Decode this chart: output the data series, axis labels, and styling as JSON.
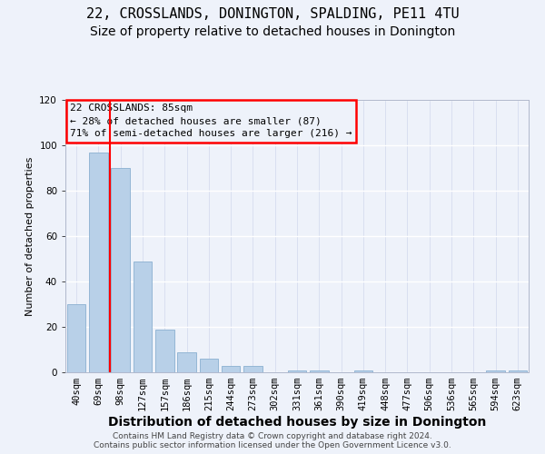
{
  "title1": "22, CROSSLANDS, DONINGTON, SPALDING, PE11 4TU",
  "title2": "Size of property relative to detached houses in Donington",
  "xlabel": "Distribution of detached houses by size in Donington",
  "ylabel": "Number of detached properties",
  "categories": [
    "40sqm",
    "69sqm",
    "98sqm",
    "127sqm",
    "157sqm",
    "186sqm",
    "215sqm",
    "244sqm",
    "273sqm",
    "302sqm",
    "331sqm",
    "361sqm",
    "390sqm",
    "419sqm",
    "448sqm",
    "477sqm",
    "506sqm",
    "536sqm",
    "565sqm",
    "594sqm",
    "623sqm"
  ],
  "values": [
    30,
    97,
    90,
    49,
    19,
    9,
    6,
    3,
    3,
    0,
    1,
    1,
    0,
    1,
    0,
    0,
    0,
    0,
    0,
    1,
    1
  ],
  "bar_color": "#b8d0e8",
  "bar_edge_color": "#8ab0d0",
  "vline_x": 1.5,
  "vline_color": "red",
  "ylim": [
    0,
    120
  ],
  "yticks": [
    0,
    20,
    40,
    60,
    80,
    100,
    120
  ],
  "annotation_title": "22 CROSSLANDS: 85sqm",
  "annotation_line1": "← 28% of detached houses are smaller (87)",
  "annotation_line2": "71% of semi-detached houses are larger (216) →",
  "annotation_box_color": "red",
  "footer_line1": "Contains HM Land Registry data © Crown copyright and database right 2024.",
  "footer_line2": "Contains public sector information licensed under the Open Government Licence v3.0.",
  "bg_color": "#eef2fa",
  "grid_color": "#d0d8ec",
  "title1_fontsize": 11,
  "title2_fontsize": 10,
  "xlabel_fontsize": 10,
  "ylabel_fontsize": 8,
  "tick_fontsize": 7.5,
  "annot_fontsize": 8,
  "footer_fontsize": 6.5
}
